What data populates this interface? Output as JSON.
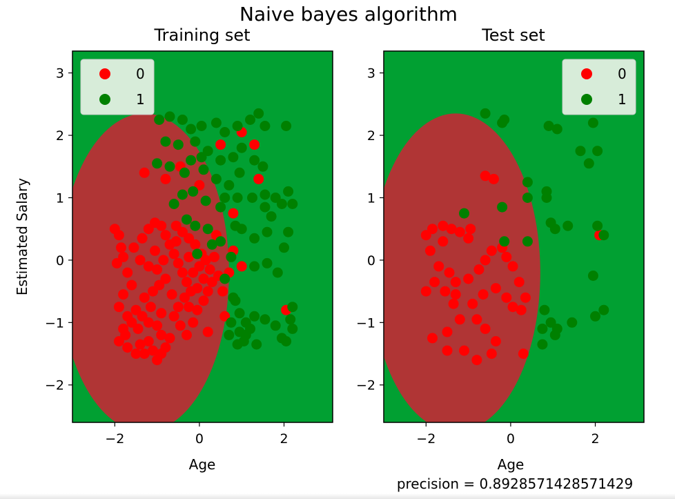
{
  "figure": {
    "suptitle": "Naive bayes algorithm",
    "colors": {
      "region_0": "#b03535",
      "region_1": "#01a032",
      "point_0": "#ff0000",
      "point_1": "#008000",
      "legend_bg": "#d7ecd9"
    }
  },
  "chart_data": [
    {
      "type": "scatter",
      "title": "Training set",
      "xlabel": "Age",
      "ylabel": "Estimated Salary",
      "xlim": [
        -3.0,
        3.15
      ],
      "ylim": [
        -2.6,
        3.35
      ],
      "xticks": [
        -2,
        0,
        2
      ],
      "xtick_labels": [
        "−2",
        "0",
        "2"
      ],
      "yticks": [
        -2,
        -1,
        0,
        1,
        2,
        3
      ],
      "ytick_labels": [
        "−2",
        "−1",
        "0",
        "1",
        "2",
        "3"
      ],
      "grid": false,
      "legend": {
        "placement": "top-left",
        "entries": [
          "0",
          "1"
        ]
      },
      "decision_region": {
        "class_0_center": [
          -1.3,
          -0.2
        ],
        "class_0_radius": [
          2.0,
          2.55
        ],
        "inside_class": "0",
        "outside_class": "1"
      },
      "series": [
        {
          "name": "0",
          "points": [
            [
              -2.0,
              0.5
            ],
            [
              -1.9,
              0.4
            ],
            [
              -1.85,
              0.2
            ],
            [
              -1.8,
              0.05
            ],
            [
              -1.95,
              -0.05
            ],
            [
              -1.7,
              -0.2
            ],
            [
              -1.6,
              -0.4
            ],
            [
              -1.8,
              -0.55
            ],
            [
              -1.9,
              -0.75
            ],
            [
              -1.7,
              -0.9
            ],
            [
              -1.6,
              -1.0
            ],
            [
              -1.8,
              -1.1
            ],
            [
              -1.9,
              -1.3
            ],
            [
              -1.7,
              -1.4
            ],
            [
              -1.5,
              -1.5
            ],
            [
              -1.4,
              -1.35
            ],
            [
              -1.3,
              -1.5
            ],
            [
              -1.2,
              -1.3
            ],
            [
              -1.1,
              -1.45
            ],
            [
              -1.0,
              -1.6
            ],
            [
              -0.9,
              -1.5
            ],
            [
              -0.8,
              -1.4
            ],
            [
              -0.9,
              -1.2
            ],
            [
              -1.0,
              -1.05
            ],
            [
              -1.2,
              -1.0
            ],
            [
              -1.35,
              -0.9
            ],
            [
              -1.5,
              -0.8
            ],
            [
              -1.3,
              -0.6
            ],
            [
              -1.1,
              -0.5
            ],
            [
              -0.95,
              -0.4
            ],
            [
              -0.8,
              -0.3
            ],
            [
              -1.0,
              -0.15
            ],
            [
              -1.2,
              -0.1
            ],
            [
              -1.4,
              0.0
            ],
            [
              -1.55,
              0.2
            ],
            [
              -1.35,
              0.35
            ],
            [
              -1.2,
              0.5
            ],
            [
              -1.05,
              0.6
            ],
            [
              -0.9,
              0.55
            ],
            [
              -0.8,
              0.4
            ],
            [
              -0.7,
              0.25
            ],
            [
              -0.6,
              0.1
            ],
            [
              -0.5,
              -0.05
            ],
            [
              -0.4,
              -0.2
            ],
            [
              -0.3,
              -0.35
            ],
            [
              -0.2,
              -0.5
            ],
            [
              -0.35,
              -0.6
            ],
            [
              -0.5,
              -0.75
            ],
            [
              -0.6,
              -0.9
            ],
            [
              -0.45,
              -1.05
            ],
            [
              -0.3,
              -1.2
            ],
            [
              -0.15,
              -1.0
            ],
            [
              -0.05,
              -0.8
            ],
            [
              0.1,
              -0.65
            ],
            [
              0.2,
              -0.5
            ],
            [
              0.3,
              -0.35
            ],
            [
              0.25,
              -0.15
            ],
            [
              0.15,
              0.0
            ],
            [
              0.05,
              0.1
            ],
            [
              -0.1,
              0.25
            ],
            [
              -0.25,
              0.35
            ],
            [
              -0.4,
              0.45
            ],
            [
              -0.55,
              0.55
            ],
            [
              0.1,
              -0.3
            ],
            [
              0.0,
              -0.1
            ],
            [
              -0.15,
              -0.2
            ],
            [
              0.35,
              0.05
            ],
            [
              0.45,
              -0.25
            ],
            [
              0.55,
              -0.5
            ],
            [
              0.6,
              -0.9
            ],
            [
              0.2,
              -1.15
            ],
            [
              -0.7,
              -1.25
            ],
            [
              -0.9,
              -0.85
            ],
            [
              -1.15,
              -0.75
            ],
            [
              -0.65,
              -0.55
            ],
            [
              -0.85,
              0.0
            ],
            [
              -0.55,
              0.3
            ],
            [
              -1.05,
              0.15
            ],
            [
              -0.25,
              0.05
            ],
            [
              -0.05,
              -0.45
            ],
            [
              -1.3,
              1.4
            ],
            [
              -0.8,
              1.3
            ],
            [
              -0.45,
              1.5
            ],
            [
              0.0,
              1.2
            ],
            [
              0.5,
              1.85
            ],
            [
              1.0,
              2.05
            ],
            [
              1.3,
              1.85
            ],
            [
              1.4,
              1.3
            ],
            [
              0.8,
              0.75
            ],
            [
              0.8,
              0.15
            ],
            [
              1.0,
              -0.1
            ],
            [
              2.05,
              -0.8
            ],
            [
              -1.75,
              -1.2
            ],
            [
              -1.45,
              -1.1
            ],
            [
              -0.25,
              -0.75
            ],
            [
              0.4,
              0.4
            ],
            [
              0.7,
              -0.2
            ]
          ]
        },
        {
          "name": "1",
          "points": [
            [
              -0.95,
              2.25
            ],
            [
              -0.7,
              2.3
            ],
            [
              -0.4,
              2.25
            ],
            [
              -0.2,
              2.1
            ],
            [
              0.05,
              2.15
            ],
            [
              0.4,
              2.2
            ],
            [
              0.6,
              2.05
            ],
            [
              0.9,
              2.15
            ],
            [
              1.2,
              2.25
            ],
            [
              1.4,
              2.35
            ],
            [
              1.55,
              2.15
            ],
            [
              2.05,
              2.15
            ],
            [
              -0.8,
              1.9
            ],
            [
              -0.5,
              1.85
            ],
            [
              -0.1,
              1.9
            ],
            [
              0.2,
              1.75
            ],
            [
              0.5,
              1.6
            ],
            [
              0.8,
              1.65
            ],
            [
              1.0,
              1.8
            ],
            [
              1.3,
              1.6
            ],
            [
              1.5,
              1.5
            ],
            [
              -1.0,
              1.55
            ],
            [
              -0.7,
              1.5
            ],
            [
              -0.2,
              1.6
            ],
            [
              0.1,
              1.45
            ],
            [
              0.4,
              1.3
            ],
            [
              0.7,
              1.2
            ],
            [
              0.95,
              1.4
            ],
            [
              1.25,
              1.0
            ],
            [
              1.55,
              1.05
            ],
            [
              1.8,
              1.0
            ],
            [
              2.1,
              1.1
            ],
            [
              -0.4,
              1.05
            ],
            [
              -0.15,
              1.1
            ],
            [
              0.15,
              0.95
            ],
            [
              0.5,
              0.85
            ],
            [
              0.85,
              0.55
            ],
            [
              1.0,
              0.5
            ],
            [
              1.3,
              0.35
            ],
            [
              1.6,
              0.45
            ],
            [
              1.95,
              0.9
            ],
            [
              2.1,
              0.45
            ],
            [
              -0.3,
              0.65
            ],
            [
              -0.1,
              0.55
            ],
            [
              0.2,
              0.5
            ],
            [
              0.5,
              0.3
            ],
            [
              0.75,
              0.05
            ],
            [
              1.3,
              -0.1
            ],
            [
              1.6,
              -0.05
            ],
            [
              1.85,
              -0.2
            ],
            [
              2.0,
              0.2
            ],
            [
              2.2,
              -0.75
            ],
            [
              0.8,
              -0.6
            ],
            [
              0.95,
              -0.85
            ],
            [
              1.1,
              -1.0
            ],
            [
              1.3,
              -0.9
            ],
            [
              1.55,
              -0.95
            ],
            [
              1.8,
              -1.05
            ],
            [
              1.95,
              -1.25
            ],
            [
              2.15,
              -0.95
            ],
            [
              0.7,
              -1.2
            ],
            [
              0.9,
              -1.35
            ],
            [
              1.05,
              -1.3
            ],
            [
              1.35,
              -1.35
            ],
            [
              0.85,
              -0.65
            ],
            [
              1.1,
              -1.2
            ],
            [
              0.75,
              -1.0
            ],
            [
              0.95,
              -1.15
            ],
            [
              1.2,
              -1.1
            ],
            [
              2.05,
              -1.3
            ],
            [
              2.2,
              -1.1
            ],
            [
              0.6,
              -0.3
            ],
            [
              -0.05,
              0.1
            ],
            [
              0.3,
              0.25
            ],
            [
              -0.35,
              1.4
            ],
            [
              0.05,
              1.65
            ],
            [
              -0.6,
              0.9
            ],
            [
              0.6,
              1.0
            ],
            [
              0.9,
              1.0
            ],
            [
              1.55,
              0.85
            ],
            [
              1.7,
              0.7
            ],
            [
              2.2,
              0.9
            ]
          ]
        }
      ]
    },
    {
      "type": "scatter",
      "title": "Test set",
      "xlabel": "Age",
      "xlim": [
        -3.0,
        3.15
      ],
      "ylim": [
        -2.6,
        3.35
      ],
      "xticks": [
        -2,
        0,
        2
      ],
      "xtick_labels": [
        "−2",
        "0",
        "2"
      ],
      "yticks": [
        -2,
        -1,
        0,
        1,
        2,
        3
      ],
      "ytick_labels": [
        "−2",
        "−1",
        "0",
        "1",
        "2",
        "3"
      ],
      "grid": false,
      "legend": {
        "placement": "top-right",
        "entries": [
          "0",
          "1"
        ]
      },
      "decision_region": {
        "class_0_center": [
          -1.3,
          -0.2
        ],
        "class_0_radius": [
          2.0,
          2.55
        ],
        "inside_class": "0",
        "outside_class": "1"
      },
      "series": [
        {
          "name": "0",
          "points": [
            [
              -2.0,
              0.4
            ],
            [
              -1.85,
              0.5
            ],
            [
              -1.6,
              0.55
            ],
            [
              -1.4,
              0.5
            ],
            [
              -1.2,
              0.45
            ],
            [
              -1.0,
              0.35
            ],
            [
              -1.6,
              0.3
            ],
            [
              -1.9,
              0.15
            ],
            [
              -1.7,
              -0.1
            ],
            [
              -1.45,
              -0.2
            ],
            [
              -1.3,
              -0.35
            ],
            [
              -1.0,
              -0.3
            ],
            [
              -0.75,
              -0.15
            ],
            [
              -0.6,
              0.0
            ],
            [
              -0.45,
              0.15
            ],
            [
              -0.2,
              0.2
            ],
            [
              -0.1,
              0.05
            ],
            [
              0.05,
              -0.1
            ],
            [
              0.2,
              -0.35
            ],
            [
              0.35,
              -0.6
            ],
            [
              0.25,
              -0.8
            ],
            [
              -0.1,
              -0.6
            ],
            [
              -0.35,
              -0.45
            ],
            [
              -0.65,
              -0.55
            ],
            [
              -0.9,
              -0.7
            ],
            [
              -1.2,
              -0.95
            ],
            [
              -1.5,
              -1.15
            ],
            [
              -1.85,
              -1.25
            ],
            [
              -1.5,
              -1.45
            ],
            [
              -1.1,
              -1.45
            ],
            [
              -0.8,
              -1.6
            ],
            [
              -0.45,
              -1.5
            ],
            [
              -0.35,
              -1.3
            ],
            [
              -0.6,
              -1.1
            ],
            [
              -0.8,
              -0.95
            ],
            [
              -1.35,
              -0.7
            ],
            [
              -1.55,
              -0.5
            ],
            [
              -1.8,
              -0.35
            ],
            [
              -0.6,
              1.35
            ],
            [
              -0.4,
              1.3
            ],
            [
              2.1,
              0.4
            ],
            [
              0.3,
              -1.5
            ],
            [
              -1.3,
              -0.55
            ],
            [
              0.05,
              -0.75
            ],
            [
              -0.95,
              0.5
            ],
            [
              -2.0,
              -0.5
            ]
          ]
        },
        {
          "name": "1",
          "points": [
            [
              -0.6,
              2.35
            ],
            [
              -0.2,
              2.2
            ],
            [
              0.9,
              2.15
            ],
            [
              1.1,
              2.1
            ],
            [
              1.95,
              2.2
            ],
            [
              -0.15,
              2.25
            ],
            [
              1.65,
              1.75
            ],
            [
              1.85,
              1.55
            ],
            [
              2.05,
              1.75
            ],
            [
              0.4,
              1.25
            ],
            [
              0.85,
              1.1
            ],
            [
              0.85,
              1.0
            ],
            [
              0.4,
              1.0
            ],
            [
              -0.2,
              0.85
            ],
            [
              0.95,
              0.6
            ],
            [
              1.05,
              0.5
            ],
            [
              1.35,
              0.55
            ],
            [
              2.05,
              0.55
            ],
            [
              2.2,
              0.4
            ],
            [
              -1.1,
              0.75
            ],
            [
              -0.15,
              0.3
            ],
            [
              0.4,
              0.3
            ],
            [
              1.95,
              -0.25
            ],
            [
              0.8,
              -0.8
            ],
            [
              0.95,
              -1.0
            ],
            [
              1.1,
              -1.1
            ],
            [
              1.45,
              -1.0
            ],
            [
              2.0,
              -0.9
            ],
            [
              2.2,
              -0.8
            ],
            [
              0.75,
              -1.1
            ],
            [
              1.05,
              -1.2
            ],
            [
              0.75,
              -1.35
            ]
          ]
        }
      ]
    }
  ],
  "footer": {
    "precision_label": "precision = 0.8928571428571429"
  }
}
